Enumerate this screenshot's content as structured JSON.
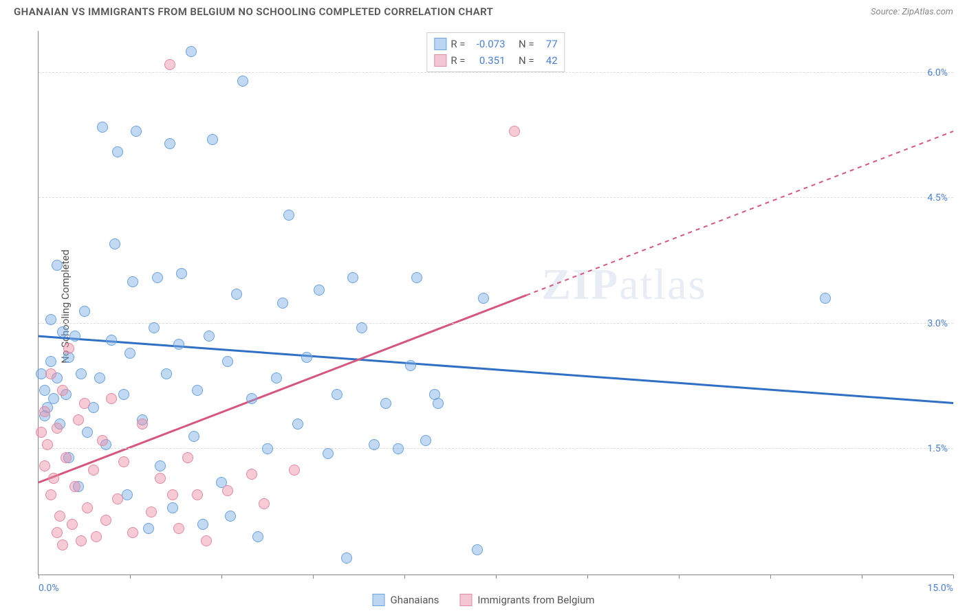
{
  "title": "GHANAIAN VS IMMIGRANTS FROM BELGIUM NO SCHOOLING COMPLETED CORRELATION CHART",
  "source": "Source: ZipAtlas.com",
  "ylabel": "No Schooling Completed",
  "watermark_a": "ZIP",
  "watermark_b": "atlas",
  "chart": {
    "type": "scatter",
    "xlim": [
      0,
      15
    ],
    "ylim": [
      0,
      6.5
    ],
    "background_color": "#ffffff",
    "grid_color": "#dddddd",
    "grid_dash": "4,4",
    "yticks": [
      {
        "v": 1.5,
        "label": "1.5%"
      },
      {
        "v": 3.0,
        "label": "3.0%"
      },
      {
        "v": 4.5,
        "label": "4.5%"
      },
      {
        "v": 6.0,
        "label": "6.0%"
      }
    ],
    "xticks_major": [
      0,
      7.5,
      15
    ],
    "xticks_minor": [
      1.5,
      3.0,
      4.5,
      6.0,
      9.0,
      10.5,
      12.0,
      13.5
    ],
    "xtick_labels": [
      {
        "v": 0,
        "label": "0.0%"
      },
      {
        "v": 15,
        "label": "15.0%"
      }
    ],
    "series": [
      {
        "key": "ghanaians",
        "label": "Ghanaians",
        "fill": "rgba(120,170,230,0.45)",
        "stroke": "#6aa3e0",
        "swatch_fill": "#bcd6f2",
        "swatch_stroke": "#6aa3e0",
        "marker_radius": 8,
        "trend": {
          "y0": 2.85,
          "y1": 2.05,
          "color": "#2f6fc4",
          "width": 3,
          "dash_from_x": null
        },
        "R": "-0.073",
        "N": "77",
        "points": [
          [
            0.05,
            2.4
          ],
          [
            0.1,
            2.2
          ],
          [
            0.1,
            1.9
          ],
          [
            0.15,
            2.0
          ],
          [
            0.2,
            2.55
          ],
          [
            0.2,
            3.05
          ],
          [
            0.25,
            2.1
          ],
          [
            0.3,
            2.35
          ],
          [
            0.3,
            3.7
          ],
          [
            0.35,
            1.8
          ],
          [
            0.4,
            2.9
          ],
          [
            0.45,
            2.15
          ],
          [
            0.5,
            2.6
          ],
          [
            0.5,
            1.4
          ],
          [
            0.6,
            2.85
          ],
          [
            0.65,
            1.05
          ],
          [
            0.7,
            2.4
          ],
          [
            0.75,
            3.15
          ],
          [
            0.8,
            1.7
          ],
          [
            0.9,
            2.0
          ],
          [
            1.0,
            2.35
          ],
          [
            1.05,
            5.35
          ],
          [
            1.1,
            1.55
          ],
          [
            1.2,
            2.8
          ],
          [
            1.25,
            3.95
          ],
          [
            1.3,
            5.05
          ],
          [
            1.4,
            2.15
          ],
          [
            1.45,
            0.95
          ],
          [
            1.5,
            2.65
          ],
          [
            1.55,
            3.5
          ],
          [
            1.6,
            5.3
          ],
          [
            1.7,
            1.85
          ],
          [
            1.8,
            0.55
          ],
          [
            1.9,
            2.95
          ],
          [
            1.95,
            3.55
          ],
          [
            2.0,
            1.3
          ],
          [
            2.1,
            2.4
          ],
          [
            2.15,
            5.15
          ],
          [
            2.2,
            0.8
          ],
          [
            2.3,
            2.75
          ],
          [
            2.35,
            3.6
          ],
          [
            2.5,
            6.25
          ],
          [
            2.55,
            1.65
          ],
          [
            2.6,
            2.2
          ],
          [
            2.7,
            0.6
          ],
          [
            2.8,
            2.85
          ],
          [
            2.85,
            5.2
          ],
          [
            3.0,
            1.1
          ],
          [
            3.1,
            2.55
          ],
          [
            3.15,
            0.7
          ],
          [
            3.25,
            3.35
          ],
          [
            3.35,
            5.9
          ],
          [
            3.5,
            2.1
          ],
          [
            3.6,
            0.45
          ],
          [
            3.75,
            1.5
          ],
          [
            3.9,
            2.35
          ],
          [
            4.0,
            3.25
          ],
          [
            4.1,
            4.3
          ],
          [
            4.25,
            1.8
          ],
          [
            4.4,
            2.6
          ],
          [
            4.6,
            3.4
          ],
          [
            4.75,
            1.45
          ],
          [
            4.9,
            2.15
          ],
          [
            5.05,
            0.2
          ],
          [
            5.15,
            3.55
          ],
          [
            5.3,
            2.95
          ],
          [
            5.5,
            1.55
          ],
          [
            5.7,
            2.05
          ],
          [
            5.9,
            1.5
          ],
          [
            6.1,
            2.5
          ],
          [
            6.2,
            3.55
          ],
          [
            6.35,
            1.6
          ],
          [
            6.5,
            2.15
          ],
          [
            6.55,
            2.05
          ],
          [
            7.2,
            0.3
          ],
          [
            7.3,
            3.3
          ],
          [
            12.9,
            3.3
          ]
        ]
      },
      {
        "key": "belgium",
        "label": "Immigrants from Belgium",
        "fill": "rgba(235,140,165,0.45)",
        "stroke": "#e38aa3",
        "swatch_fill": "#f2c6d2",
        "swatch_stroke": "#e38aa3",
        "marker_radius": 8,
        "trend": {
          "y0": 1.1,
          "y1": 5.3,
          "color": "#d6567d",
          "width": 3,
          "dash_from_x": 8.0
        },
        "R": "0.351",
        "N": "42",
        "points": [
          [
            0.05,
            1.7
          ],
          [
            0.1,
            1.95
          ],
          [
            0.1,
            1.3
          ],
          [
            0.15,
            1.55
          ],
          [
            0.2,
            2.4
          ],
          [
            0.2,
            0.95
          ],
          [
            0.25,
            1.15
          ],
          [
            0.3,
            0.5
          ],
          [
            0.3,
            1.75
          ],
          [
            0.35,
            0.7
          ],
          [
            0.4,
            2.2
          ],
          [
            0.4,
            0.35
          ],
          [
            0.45,
            1.4
          ],
          [
            0.5,
            2.7
          ],
          [
            0.55,
            0.6
          ],
          [
            0.6,
            1.05
          ],
          [
            0.65,
            1.85
          ],
          [
            0.7,
            0.4
          ],
          [
            0.75,
            2.05
          ],
          [
            0.8,
            0.8
          ],
          [
            0.9,
            1.25
          ],
          [
            0.95,
            0.45
          ],
          [
            1.05,
            1.6
          ],
          [
            1.1,
            0.65
          ],
          [
            1.2,
            2.1
          ],
          [
            1.3,
            0.9
          ],
          [
            1.4,
            1.35
          ],
          [
            1.55,
            0.5
          ],
          [
            1.7,
            1.8
          ],
          [
            1.85,
            0.75
          ],
          [
            2.0,
            1.15
          ],
          [
            2.15,
            6.1
          ],
          [
            2.2,
            0.95
          ],
          [
            2.3,
            0.55
          ],
          [
            2.45,
            1.4
          ],
          [
            2.6,
            0.95
          ],
          [
            2.75,
            0.4
          ],
          [
            3.1,
            1.0
          ],
          [
            3.5,
            1.2
          ],
          [
            3.7,
            0.85
          ],
          [
            4.2,
            1.25
          ],
          [
            7.8,
            5.3
          ]
        ]
      }
    ]
  },
  "legend_stats_label_R": "R =",
  "legend_stats_label_N": "N ="
}
